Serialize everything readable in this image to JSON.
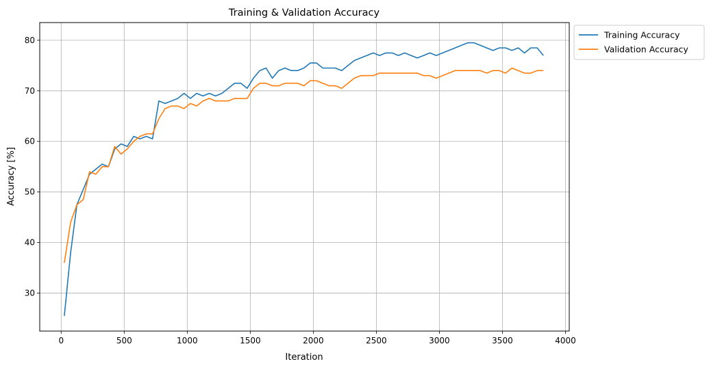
{
  "chart_data": {
    "type": "line",
    "title": "Training & Validation Accuracy",
    "xlabel": "Iteration",
    "ylabel": "Accuracy [%]",
    "xlim": [
      -170,
      4030
    ],
    "ylim": [
      22.5,
      83.5
    ],
    "xticks": [
      0,
      500,
      1000,
      1500,
      2000,
      2500,
      3000,
      3500,
      4000
    ],
    "yticks": [
      30,
      40,
      50,
      60,
      70,
      80
    ],
    "grid": true,
    "legend": "outside-top-right",
    "series": [
      {
        "name": "Training Accuracy",
        "color": "#1f77b4",
        "x": [
          25,
          75,
          125,
          175,
          225,
          275,
          325,
          375,
          425,
          475,
          525,
          575,
          625,
          675,
          725,
          775,
          825,
          875,
          925,
          975,
          1025,
          1075,
          1125,
          1175,
          1225,
          1275,
          1325,
          1375,
          1425,
          1475,
          1525,
          1575,
          1625,
          1675,
          1725,
          1775,
          1825,
          1875,
          1925,
          1975,
          2025,
          2075,
          2125,
          2175,
          2225,
          2275,
          2325,
          2375,
          2425,
          2475,
          2525,
          2575,
          2625,
          2675,
          2725,
          2775,
          2825,
          2875,
          2925,
          2975,
          3025,
          3075,
          3125,
          3175,
          3225,
          3275,
          3325,
          3375,
          3425,
          3475,
          3525,
          3575,
          3625,
          3675,
          3725,
          3775,
          3825
        ],
        "values": [
          25.5,
          38.0,
          47.5,
          50.5,
          53.5,
          54.5,
          55.5,
          55.0,
          58.5,
          59.5,
          59.0,
          61.0,
          60.5,
          61.0,
          60.5,
          68.0,
          67.5,
          68.0,
          68.5,
          69.5,
          68.5,
          69.5,
          69.0,
          69.5,
          69.0,
          69.5,
          70.5,
          71.5,
          71.5,
          70.5,
          72.5,
          74.0,
          74.5,
          72.5,
          74.0,
          74.5,
          74.0,
          74.0,
          74.5,
          75.5,
          75.5,
          74.5,
          74.5,
          74.5,
          74.0,
          75.0,
          76.0,
          76.5,
          77.0,
          77.5,
          77.0,
          77.5,
          77.5,
          77.0,
          77.5,
          77.0,
          76.5,
          77.0,
          77.5,
          77.0,
          77.5,
          78.0,
          78.5,
          79.0,
          79.5,
          79.5,
          79.0,
          78.5,
          78.0,
          78.5,
          78.5,
          78.0,
          78.5,
          77.5,
          78.5,
          78.5,
          77.0
        ]
      },
      {
        "name": "Validation Accuracy",
        "color": "#ff7f0e",
        "x": [
          25,
          75,
          125,
          175,
          225,
          275,
          325,
          375,
          425,
          475,
          525,
          575,
          625,
          675,
          725,
          775,
          825,
          875,
          925,
          975,
          1025,
          1075,
          1125,
          1175,
          1225,
          1275,
          1325,
          1375,
          1425,
          1475,
          1525,
          1575,
          1625,
          1675,
          1725,
          1775,
          1825,
          1875,
          1925,
          1975,
          2025,
          2075,
          2125,
          2175,
          2225,
          2275,
          2325,
          2375,
          2425,
          2475,
          2525,
          2575,
          2625,
          2675,
          2725,
          2775,
          2825,
          2875,
          2925,
          2975,
          3025,
          3075,
          3125,
          3175,
          3225,
          3275,
          3325,
          3375,
          3425,
          3475,
          3525,
          3575,
          3625,
          3675,
          3725,
          3775,
          3825
        ],
        "values": [
          36.0,
          44.0,
          47.5,
          48.5,
          54.0,
          53.5,
          55.0,
          55.0,
          59.0,
          57.5,
          58.5,
          60.0,
          61.0,
          61.5,
          61.5,
          64.5,
          66.5,
          67.0,
          67.0,
          66.5,
          67.5,
          67.0,
          68.0,
          68.5,
          68.0,
          68.0,
          68.0,
          68.5,
          68.5,
          68.5,
          70.5,
          71.5,
          71.5,
          71.0,
          71.0,
          71.5,
          71.5,
          71.5,
          71.0,
          72.0,
          72.0,
          71.5,
          71.0,
          71.0,
          70.5,
          71.5,
          72.5,
          73.0,
          73.0,
          73.0,
          73.5,
          73.5,
          73.5,
          73.5,
          73.5,
          73.5,
          73.5,
          73.0,
          73.0,
          72.5,
          73.0,
          73.5,
          74.0,
          74.0,
          74.0,
          74.0,
          74.0,
          73.5,
          74.0,
          74.0,
          73.5,
          74.5,
          74.0,
          73.5,
          73.5,
          74.0,
          74.0
        ]
      }
    ]
  }
}
